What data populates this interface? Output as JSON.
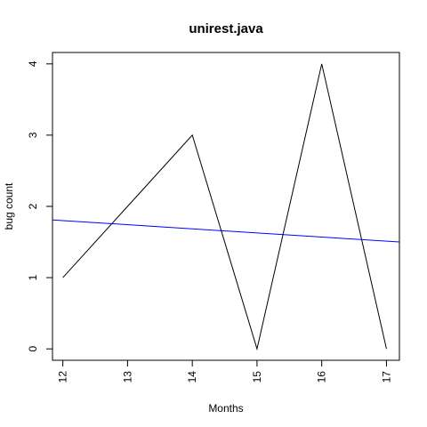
{
  "chart_data": {
    "type": "line",
    "title": "unirest.java",
    "xlabel": "Months",
    "ylabel": "bug count",
    "x": [
      12,
      13,
      14,
      15,
      16,
      17
    ],
    "series": [
      {
        "values": [
          1,
          2,
          3,
          0,
          4,
          0
        ],
        "color": "#000000"
      }
    ],
    "trend_line": {
      "color": "#0000ff",
      "x": [
        11.84,
        17.2
      ],
      "y": [
        1.81,
        1.5
      ]
    },
    "xlim": [
      11.84,
      17.2
    ],
    "ylim": [
      -0.16,
      4.16
    ],
    "x_ticks": [
      "12",
      "13",
      "14",
      "15",
      "16",
      "17"
    ],
    "y_ticks": [
      "0",
      "1",
      "2",
      "3",
      "4"
    ],
    "grid": false,
    "legend": "none"
  }
}
